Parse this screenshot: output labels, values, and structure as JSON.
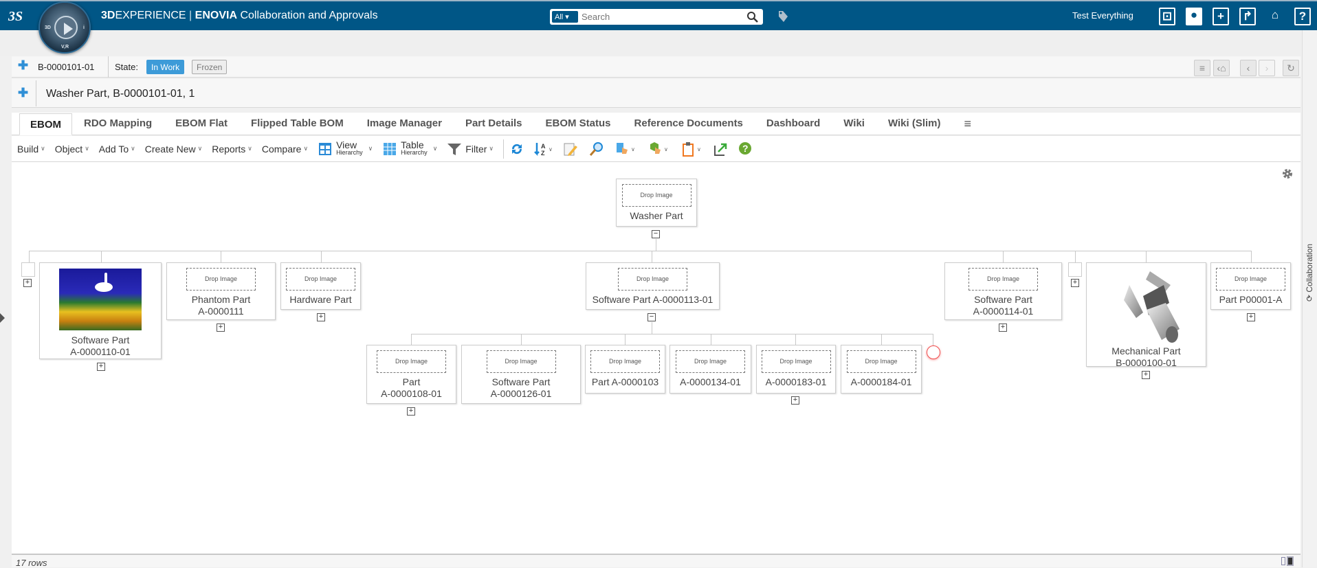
{
  "header": {
    "brand_bold": "3D",
    "brand": "EXPERIENCE",
    "separator": "|",
    "app_bold": "ENOVIA",
    "app": "Collaboration and Approvals",
    "search_scope": "All",
    "search_placeholder": "Search",
    "user": "Test Everything",
    "compass_labels": [
      "3D",
      "V,R",
      "i"
    ],
    "brand_color": "#005686"
  },
  "object_bar": {
    "id": "B-0000101-01",
    "state_label": "State:",
    "states": [
      {
        "label": "In Work",
        "active": true
      },
      {
        "label": "Frozen",
        "active": false
      }
    ]
  },
  "title_bar": {
    "title": "Washer Part, B-0000101-01, 1"
  },
  "tabs": [
    "EBOM",
    "RDO Mapping",
    "EBOM Flat",
    "Flipped Table BOM",
    "Image Manager",
    "Part Details",
    "EBOM Status",
    "Reference Documents",
    "Dashboard",
    "Wiki",
    "Wiki (Slim)"
  ],
  "toolbar": {
    "build": "Build",
    "object": "Object",
    "add_to": "Add To",
    "create_new": "Create New",
    "reports": "Reports",
    "compare": "Compare",
    "view": "View",
    "view_sub": "Hierarchy",
    "table": "Table",
    "table_sub": "Hierarchy",
    "filter": "Filter"
  },
  "tree": {
    "drop_image": "Drop Image",
    "root": {
      "line1": "Washer Part"
    },
    "level1": [
      {
        "line1": "Software Part",
        "line2": "A-0000110-01",
        "image": "swan-photo"
      },
      {
        "line1": "Phantom Part",
        "line2": "A-0000111"
      },
      {
        "line1": "Hardware Part"
      },
      {
        "line1": "Software Part A-0000113-01"
      },
      {
        "line1": "Software Part",
        "line2": "A-0000114-01"
      },
      {
        "line1": "Mechanical Part",
        "line2": "B-0000100-01",
        "image": "mechanical-part-3d"
      },
      {
        "line1": "Part P00001-A"
      }
    ],
    "level2": [
      {
        "line1": "Part",
        "line2": "A-0000108-01"
      },
      {
        "line1": "Software Part",
        "line2": "A-0000126-01"
      },
      {
        "line1": "Part A-0000103"
      },
      {
        "line1": "A-0000134-01"
      },
      {
        "line1": "A-0000183-01"
      },
      {
        "line1": "A-0000184-01"
      }
    ]
  },
  "footer": {
    "rows": "17 rows"
  },
  "sidebar": {
    "collaboration": "Collaboration"
  }
}
